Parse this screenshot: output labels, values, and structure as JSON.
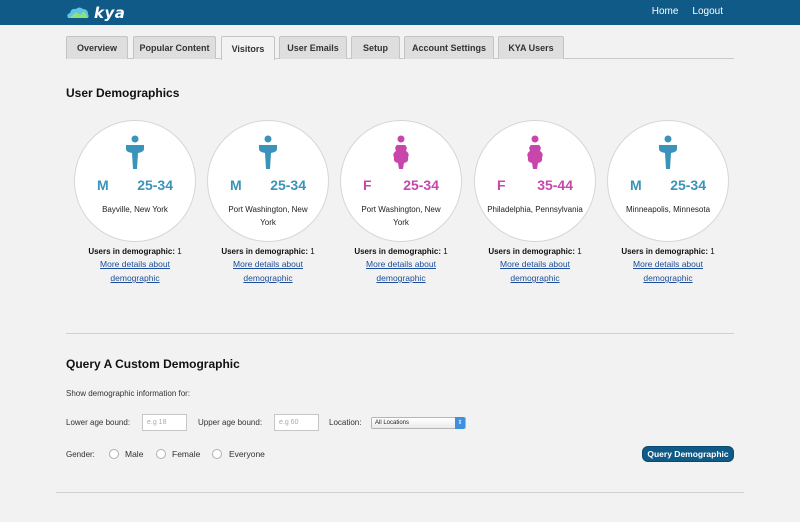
{
  "app": {
    "logo_text": "kya"
  },
  "topnav": {
    "home": "Home",
    "logout": "Logout"
  },
  "tabs": [
    {
      "label": "Overview",
      "active": false
    },
    {
      "label": "Popular Content",
      "active": false
    },
    {
      "label": "Visitors",
      "active": true
    },
    {
      "label": "User Emails",
      "active": false
    },
    {
      "label": "Setup",
      "active": false
    },
    {
      "label": "Account Settings",
      "active": false
    },
    {
      "label": "KYA Users",
      "active": false
    }
  ],
  "demographics": {
    "heading": "User Demographics",
    "cards": [
      {
        "gender": "M",
        "age": "25-34",
        "location": "Bayville, New York",
        "users_label": "Users in demographic:",
        "users_count": "1",
        "link": "More details about demographic"
      },
      {
        "gender": "M",
        "age": "25-34",
        "location": "Port Washington, New York",
        "users_label": "Users in demographic:",
        "users_count": "1",
        "link": "More details about demographic"
      },
      {
        "gender": "F",
        "age": "25-34",
        "location": "Port Washington, New York",
        "users_label": "Users in demographic:",
        "users_count": "1",
        "link": "More details about demographic"
      },
      {
        "gender": "F",
        "age": "35-44",
        "location": "Philadelphia, Pennsylvania",
        "users_label": "Users in demographic:",
        "users_count": "1",
        "link": "More details about demographic"
      },
      {
        "gender": "M",
        "age": "25-34",
        "location": "Minneapolis, Minnesota",
        "users_label": "Users in demographic:",
        "users_count": "1",
        "link": "More details about demographic"
      }
    ]
  },
  "query": {
    "heading": "Query A Custom Demographic",
    "subtitle": "Show demographic information for:",
    "lower_label": "Lower age bound:",
    "lower_placeholder": "e.g 18",
    "upper_label": "Upper age bound:",
    "upper_placeholder": "e.g 60",
    "location_label": "Location:",
    "location_value": "All Locations",
    "gender_label": "Gender:",
    "gender_options": [
      "Male",
      "Female",
      "Everyone"
    ],
    "button": "Query Demographic"
  },
  "colors": {
    "header": "#0f5a86",
    "male": "#3a93b8",
    "female": "#c846ac",
    "link": "#1a4d9c"
  }
}
